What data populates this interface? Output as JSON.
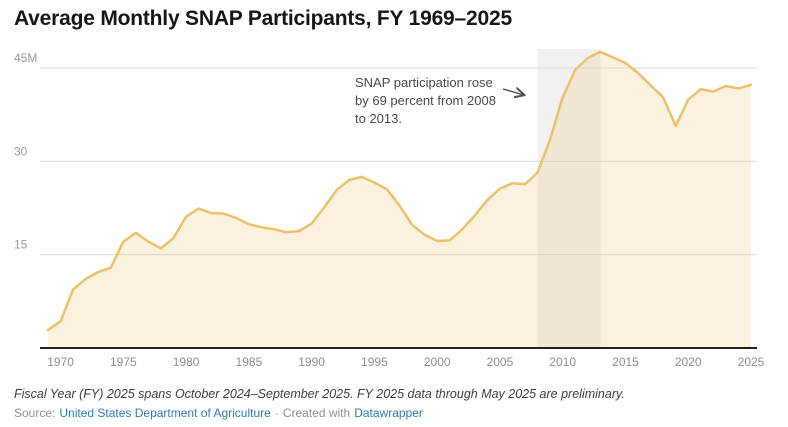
{
  "title": "Average Monthly SNAP Participants, FY 1969–2025",
  "annotation": {
    "text": "SNAP participation rose by 69 percent from 2008 to 2013."
  },
  "footer": {
    "note": "Fiscal Year (FY) 2025 spans October 2024–September 2025. FY 2025 data through May 2025 are preliminary.",
    "source_label": "Source:",
    "source_link": "United States Department of Agriculture",
    "separator": "·",
    "created_label": "Created with",
    "tool_link": "Datawrapper"
  },
  "chart_data": {
    "type": "area",
    "title": "Average Monthly SNAP Participants, FY 1969–2025",
    "unit": "millions of participants",
    "x": [
      1969,
      1970,
      1971,
      1972,
      1973,
      1974,
      1975,
      1976,
      1977,
      1978,
      1979,
      1980,
      1981,
      1982,
      1983,
      1984,
      1985,
      1986,
      1987,
      1988,
      1989,
      1990,
      1991,
      1992,
      1993,
      1994,
      1995,
      1996,
      1997,
      1998,
      1999,
      2000,
      2001,
      2002,
      2003,
      2004,
      2005,
      2006,
      2007,
      2008,
      2009,
      2010,
      2011,
      2012,
      2013,
      2014,
      2015,
      2016,
      2017,
      2018,
      2019,
      2020,
      2021,
      2022,
      2023,
      2024,
      2025
    ],
    "values": [
      2.9,
      4.3,
      9.4,
      11.1,
      12.2,
      12.9,
      17.1,
      18.5,
      17.1,
      16.0,
      17.7,
      21.1,
      22.4,
      21.7,
      21.6,
      20.9,
      19.9,
      19.4,
      19.1,
      18.6,
      18.8,
      20.0,
      22.6,
      25.4,
      27.0,
      27.5,
      26.6,
      25.5,
      22.9,
      19.8,
      18.2,
      17.2,
      17.3,
      19.1,
      21.3,
      23.8,
      25.6,
      26.5,
      26.3,
      28.2,
      33.5,
      40.3,
      44.7,
      46.6,
      47.6,
      46.7,
      45.8,
      44.2,
      42.2,
      40.3,
      35.7,
      39.9,
      41.6,
      41.2,
      42.1,
      41.7,
      42.3
    ],
    "xlabel": "",
    "ylabel": "",
    "ylim": [
      0,
      48
    ],
    "x_tick_years": [
      1970,
      1975,
      1980,
      1985,
      1990,
      1995,
      2000,
      2005,
      2010,
      2015,
      2020,
      2025
    ],
    "y_gridlines": [
      15,
      30,
      45
    ],
    "y_tick_labels": [
      "15",
      "30",
      "45M"
    ],
    "highlight_band": {
      "from": 2008,
      "to": 2013
    },
    "grid": "horizontal only",
    "legend": "none",
    "colors": {
      "line": "#eac168",
      "fill": "#eac168",
      "fill_opacity": 0.22,
      "band": "#64696e",
      "band_opacity": 0.09,
      "gridline": "#dcdcdc",
      "axis_line": "#222222",
      "tick_text": "#8e8e8e",
      "y_label_text": "#999999",
      "annotation_text": "#4a4a4a",
      "link_blue": "#2c7bb8"
    }
  }
}
